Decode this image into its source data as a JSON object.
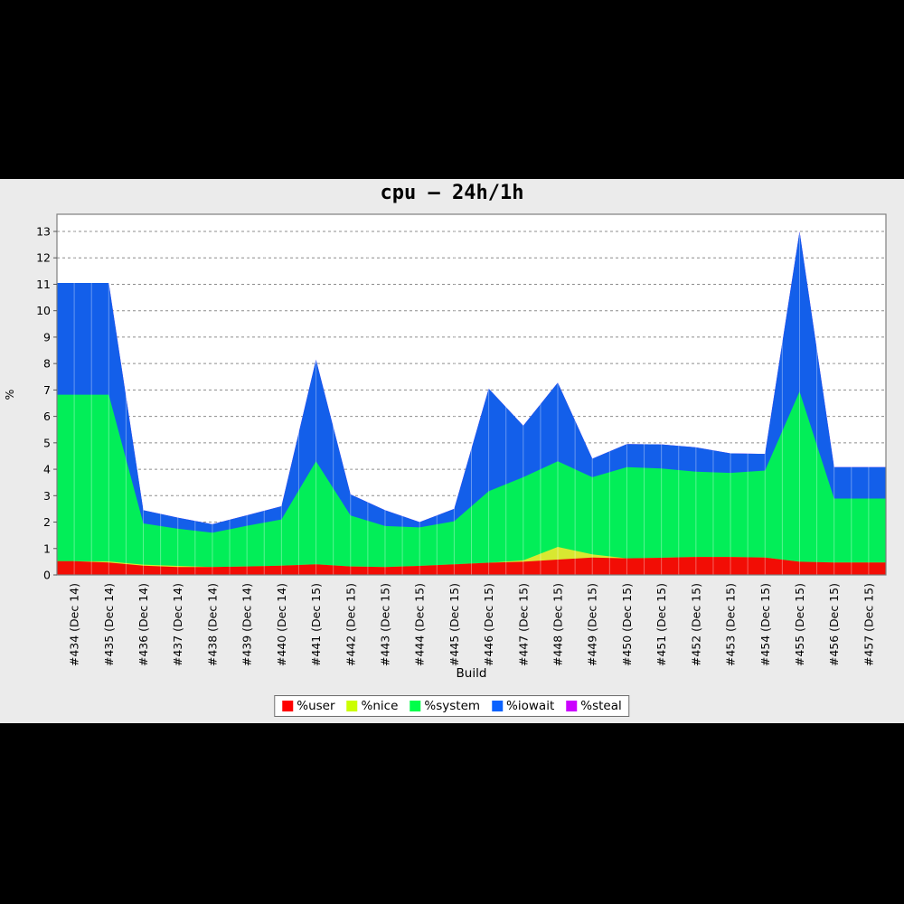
{
  "page": {
    "background": "#000000",
    "panel_background": "#ebebeb",
    "plot_background": "#ffffff",
    "plot_border_color": "#7f7f7f",
    "gridline_color": "#8c8c8c",
    "separator_line_color": "rgba(255,255,255,0.35)"
  },
  "chart_data": {
    "type": "area",
    "stacked": true,
    "title": "cpu – 24h/1h",
    "xlabel": "Build",
    "ylabel": "%",
    "ylim": [
      0,
      13.65
    ],
    "yticks": [
      0,
      1,
      2,
      3,
      4,
      5,
      6,
      7,
      8,
      9,
      10,
      11,
      12,
      13
    ],
    "grid": "horizontal-dashed",
    "legend_position": "bottom",
    "categories": [
      "#434 (Dec 14)",
      "#435 (Dec 14)",
      "#436 (Dec 14)",
      "#437 (Dec 14)",
      "#438 (Dec 14)",
      "#439 (Dec 14)",
      "#440 (Dec 14)",
      "#441 (Dec 15)",
      "#442 (Dec 15)",
      "#443 (Dec 15)",
      "#444 (Dec 15)",
      "#445 (Dec 15)",
      "#446 (Dec 15)",
      "#447 (Dec 15)",
      "#448 (Dec 15)",
      "#449 (Dec 15)",
      "#450 (Dec 15)",
      "#451 (Dec 15)",
      "#452 (Dec 15)",
      "#453 (Dec 15)",
      "#454 (Dec 15)",
      "#455 (Dec 15)",
      "#456 (Dec 15)",
      "#457 (Dec 15)"
    ],
    "series": [
      {
        "name": "%user",
        "color": "#f20d05",
        "legend_color": "#fe0101",
        "values": [
          0.52,
          0.47,
          0.35,
          0.3,
          0.3,
          0.32,
          0.35,
          0.4,
          0.32,
          0.3,
          0.34,
          0.4,
          0.46,
          0.5,
          0.58,
          0.66,
          0.63,
          0.65,
          0.68,
          0.68,
          0.66,
          0.5,
          0.47,
          0.47
        ]
      },
      {
        "name": "%nice",
        "color": "#d8e831",
        "legend_color": "#cbfe01",
        "values": [
          0,
          0.04,
          0.04,
          0.04,
          0,
          0,
          0,
          0,
          0,
          0,
          0,
          0,
          0,
          0.05,
          0.48,
          0.12,
          0,
          0,
          0,
          0,
          0,
          0,
          0,
          0
        ]
      },
      {
        "name": "%system",
        "color": "#02ee58",
        "legend_color": "#01fe4a",
        "values": [
          6.3,
          6.31,
          1.56,
          1.41,
          1.3,
          1.54,
          1.75,
          3.9,
          1.93,
          1.55,
          1.46,
          1.63,
          2.71,
          3.15,
          3.24,
          2.92,
          3.45,
          3.38,
          3.23,
          3.18,
          3.29,
          6.44,
          2.42,
          2.42
        ]
      },
      {
        "name": "%iowait",
        "color": "#135fea",
        "legend_color": "#0b62fe",
        "values": [
          4.23,
          4.23,
          0.5,
          0.42,
          0.32,
          0.4,
          0.5,
          3.85,
          0.8,
          0.6,
          0.2,
          0.47,
          3.88,
          1.95,
          2.98,
          0.7,
          0.87,
          0.91,
          0.92,
          0.74,
          0.63,
          6.06,
          1.19,
          1.19
        ]
      },
      {
        "name": "%steal",
        "color": "#cb01fe",
        "legend_color": "#cb01fe",
        "values": [
          0,
          0,
          0,
          0,
          0,
          0,
          0,
          0,
          0,
          0,
          0,
          0,
          0,
          0,
          0,
          0,
          0,
          0,
          0,
          0,
          0,
          0,
          0,
          0
        ]
      }
    ]
  }
}
